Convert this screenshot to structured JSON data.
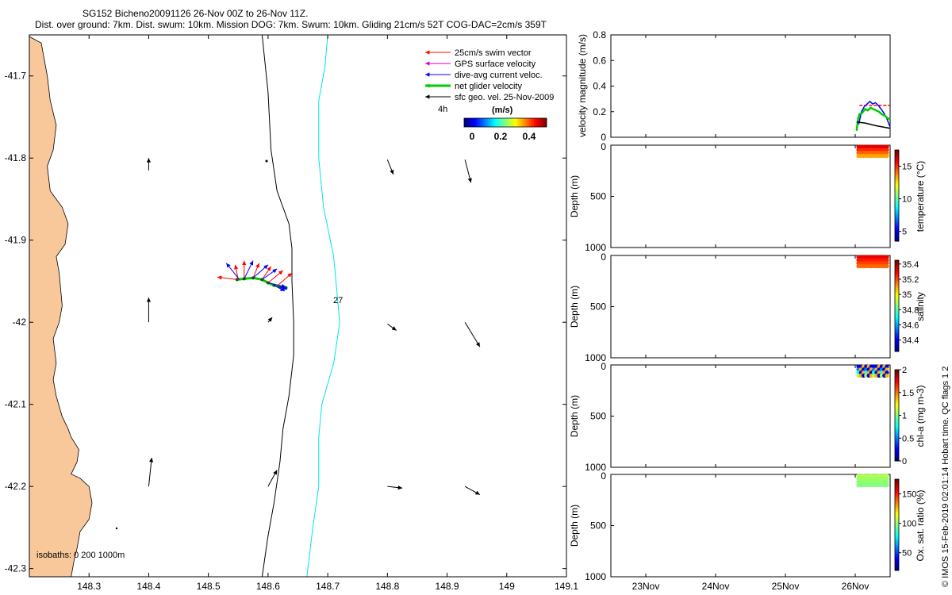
{
  "titles": {
    "line1": "SG152 Bicheno20091126 26-Nov 00Z to 26-Nov 11Z.",
    "line2": "Dist. over ground: 7km. Dist. swum: 10km. Mission DOG: 7km. Swum: 10km. Gliding 21cm/s 52T COG-DAC=2cm/s 359T"
  },
  "credit": "© IMOS 15-Feb-2019 02:01:14 Hobart time. QC flags 1 2",
  "colors": {
    "land": "#F8C89A",
    "shelf_isobath": "#000000",
    "deep_isobath": "#00E5E5",
    "swim": "#FF0000",
    "gps": "#CC00CC",
    "dac": "#0000FF",
    "net": "#00CC00",
    "geo": "#000000"
  },
  "map": {
    "legend": {
      "swim": "25cm/s swim vector",
      "gps": "GPS surface velocity",
      "dac": "dive-avg current veloc.",
      "net": "net glider velocity",
      "geo": "sfc geo. vel. 25-Nov-2009"
    },
    "glider_time_label": "4h",
    "colorbar_label": "(m/s)",
    "colorbar_ticks": [
      "0",
      "0.2",
      "0.4"
    ],
    "isobath_note": "isobaths: 0 200 1000m",
    "contour_label": "27"
  },
  "chart_data": [
    {
      "type": "scatter",
      "title": "SG152 Bicheno20091126 26-Nov 00Z to 26-Nov 11Z.",
      "xlabel": "",
      "ylabel": "",
      "xlim": [
        148.2,
        149.1
      ],
      "ylim": [
        -42.31,
        -41.65
      ],
      "x_ticks": [
        "148.3",
        "148.4",
        "148.5",
        "148.6",
        "148.7",
        "148.8",
        "148.9",
        "149",
        "149.1"
      ],
      "x_tick_values": [
        148.3,
        148.4,
        148.5,
        148.6,
        148.7,
        148.8,
        148.9,
        149.0,
        149.1
      ],
      "y_ticks": [
        "-41.7",
        "-41.8",
        "-41.9",
        "-42",
        "-42.1",
        "-42.2",
        "-42.3"
      ],
      "y_tick_values": [
        -41.7,
        -41.8,
        -41.9,
        -42.0,
        -42.1,
        -42.2,
        -42.3
      ],
      "coastline": [
        [
          148.2,
          -41.652
        ],
        [
          148.22,
          -41.66
        ],
        [
          148.23,
          -41.7
        ],
        [
          148.235,
          -41.73
        ],
        [
          148.245,
          -41.76
        ],
        [
          148.24,
          -41.79
        ],
        [
          148.23,
          -41.81
        ],
        [
          148.235,
          -41.84
        ],
        [
          148.255,
          -41.86
        ],
        [
          148.265,
          -41.88
        ],
        [
          148.26,
          -41.905
        ],
        [
          148.245,
          -41.92
        ],
        [
          148.25,
          -41.94
        ],
        [
          148.255,
          -41.98
        ],
        [
          148.25,
          -42.0
        ],
        [
          148.24,
          -42.02
        ],
        [
          148.245,
          -42.05
        ],
        [
          148.24,
          -42.07
        ],
        [
          148.245,
          -42.09
        ],
        [
          148.255,
          -42.115
        ],
        [
          148.265,
          -42.13
        ],
        [
          148.27,
          -42.14
        ],
        [
          148.283,
          -42.155
        ],
        [
          148.28,
          -42.17
        ],
        [
          148.27,
          -42.185
        ],
        [
          148.285,
          -42.19
        ],
        [
          148.3,
          -42.2
        ],
        [
          148.305,
          -42.22
        ],
        [
          148.3,
          -42.24
        ],
        [
          148.285,
          -42.255
        ],
        [
          148.28,
          -42.275
        ],
        [
          148.275,
          -42.29
        ],
        [
          148.27,
          -42.31
        ],
        [
          148.2,
          -42.31
        ]
      ],
      "shelf_isobath": [
        [
          148.59,
          -41.65
        ],
        [
          148.6,
          -41.72
        ],
        [
          148.605,
          -41.79
        ],
        [
          148.615,
          -41.84
        ],
        [
          148.635,
          -41.88
        ],
        [
          148.64,
          -41.91
        ],
        [
          148.64,
          -41.95
        ],
        [
          148.643,
          -42.0
        ],
        [
          148.643,
          -42.04
        ],
        [
          148.635,
          -42.09
        ],
        [
          148.625,
          -42.13
        ],
        [
          148.62,
          -42.17
        ],
        [
          148.61,
          -42.22
        ],
        [
          148.6,
          -42.26
        ],
        [
          148.59,
          -42.31
        ]
      ],
      "deep_isobath": [
        [
          148.7,
          -41.65
        ],
        [
          148.695,
          -41.69
        ],
        [
          148.685,
          -41.73
        ],
        [
          148.685,
          -41.8
        ],
        [
          148.693,
          -41.86
        ],
        [
          148.71,
          -41.92
        ],
        [
          148.715,
          -41.96
        ],
        [
          148.72,
          -42.0
        ],
        [
          148.71,
          -42.05
        ],
        [
          148.69,
          -42.1
        ],
        [
          148.685,
          -42.14
        ],
        [
          148.685,
          -42.2
        ],
        [
          148.675,
          -42.25
        ],
        [
          148.665,
          -42.31
        ]
      ],
      "track": [
        [
          148.548,
          -41.948
        ],
        [
          148.56,
          -41.947
        ],
        [
          148.575,
          -41.946
        ],
        [
          148.59,
          -41.948
        ],
        [
          148.6,
          -41.952
        ],
        [
          148.61,
          -41.955
        ],
        [
          148.62,
          -41.957
        ],
        [
          148.63,
          -41.958
        ]
      ],
      "swim_vectors": [
        [
          148.548,
          -41.948,
          148.515,
          -41.945
        ],
        [
          148.55,
          -41.948,
          148.545,
          -41.93
        ],
        [
          148.56,
          -41.947,
          148.56,
          -41.925
        ],
        [
          148.575,
          -41.946,
          148.585,
          -41.928
        ],
        [
          148.59,
          -41.948,
          148.605,
          -41.932
        ],
        [
          148.6,
          -41.952,
          148.625,
          -41.937
        ],
        [
          148.615,
          -41.956,
          148.64,
          -41.94
        ]
      ],
      "dac_vectors": [
        [
          148.552,
          -41.948,
          148.53,
          -41.928
        ],
        [
          148.56,
          -41.947,
          148.575,
          -41.925
        ],
        [
          148.575,
          -41.946,
          148.6,
          -41.93
        ],
        [
          148.59,
          -41.948,
          148.615,
          -41.935
        ],
        [
          148.6,
          -41.952,
          148.63,
          -41.957
        ],
        [
          148.61,
          -41.955,
          148.628,
          -41.962
        ],
        [
          148.62,
          -41.957,
          148.632,
          -41.96
        ]
      ],
      "geo_vectors": [
        [
          148.4,
          -41.815,
          148.4,
          -41.8
        ],
        [
          148.4,
          -42.0,
          148.4,
          -41.97
        ],
        [
          148.4,
          -42.2,
          148.405,
          -42.165
        ],
        [
          148.6,
          -42.0,
          148.607,
          -41.994
        ],
        [
          148.6,
          -42.2,
          148.615,
          -42.18
        ],
        [
          148.8,
          -41.802,
          148.81,
          -41.82
        ],
        [
          148.8,
          -42.002,
          148.815,
          -42.01
        ],
        [
          148.8,
          -42.2,
          148.825,
          -42.202
        ],
        [
          148.93,
          -41.802,
          148.94,
          -41.83
        ],
        [
          148.93,
          -42.0,
          148.955,
          -42.03
        ],
        [
          148.93,
          -42.2,
          148.955,
          -42.21
        ]
      ]
    },
    {
      "type": "line",
      "xlabel": "",
      "ylabel": "velocity magnitude (m/s)",
      "xlim": [
        22.5,
        26.5
      ],
      "ylim": [
        0,
        0.8
      ],
      "x_ticks": [
        "23Nov",
        "24Nov",
        "25Nov",
        "26Nov"
      ],
      "x_tick_values": [
        23,
        24,
        25,
        26
      ],
      "y_ticks": [
        "0",
        "0.2",
        "0.4",
        "0.6",
        "0.8"
      ],
      "y_tick_values": [
        0,
        0.2,
        0.4,
        0.6,
        0.8
      ],
      "series": [
        {
          "color": "#FF0000",
          "x": [
            26.06,
            26.5
          ],
          "y": [
            0.25,
            0.25
          ]
        },
        {
          "color": "#0000FF",
          "x": [
            26.05,
            26.09,
            26.13,
            26.17,
            26.21,
            26.25,
            26.29,
            26.33,
            26.37,
            26.41,
            26.45,
            26.5
          ],
          "y": [
            0.1,
            0.2,
            0.24,
            0.26,
            0.28,
            0.26,
            0.27,
            0.25,
            0.22,
            0.19,
            0.15,
            0.08
          ]
        },
        {
          "color": "#00CC00",
          "x": [
            26.02,
            26.04,
            26.06,
            26.1,
            26.14,
            26.18,
            26.22,
            26.26,
            26.3,
            26.34,
            26.38,
            26.42,
            26.46,
            26.5
          ],
          "y": [
            0.05,
            0.14,
            0.18,
            0.19,
            0.22,
            0.21,
            0.23,
            0.22,
            0.21,
            0.2,
            0.18,
            0.17,
            0.15,
            0.14
          ]
        },
        {
          "color": "#000000",
          "x": [
            26.02,
            26.15,
            26.3,
            26.5
          ],
          "y": [
            0.12,
            0.11,
            0.09,
            0.07
          ]
        }
      ]
    },
    {
      "type": "heatmap",
      "xlabel": "",
      "ylabel": "Depth (m)",
      "colorbar_label": "temperature (°C)",
      "xlim": [
        22.5,
        26.5
      ],
      "ylim": [
        0,
        1000
      ],
      "x_ticks": [
        "23Nov",
        "24Nov",
        "25Nov",
        "26Nov"
      ],
      "x_tick_values": [
        23,
        24,
        25,
        26
      ],
      "y_ticks": [
        "0",
        "500",
        "1000"
      ],
      "y_tick_values": [
        0,
        500,
        1000
      ],
      "cbar_range": [
        3.5,
        17.5
      ],
      "cbar_ticks": [
        "5",
        "10",
        "15"
      ],
      "cbar_tick_values": [
        5,
        10,
        15
      ],
      "data_block": {
        "t": [
          26.0,
          26.5
        ],
        "depth": [
          0,
          120
        ],
        "value": [
          13.5,
          16.2
        ]
      }
    },
    {
      "type": "heatmap",
      "xlabel": "",
      "ylabel": "Depth (m)",
      "colorbar_label": "salinity",
      "xlim": [
        22.5,
        26.5
      ],
      "ylim": [
        0,
        1000
      ],
      "x_ticks": [
        "23Nov",
        "24Nov",
        "25Nov",
        "26Nov"
      ],
      "x_tick_values": [
        23,
        24,
        25,
        26
      ],
      "y_ticks": [
        "0",
        "500",
        "1000"
      ],
      "y_tick_values": [
        0,
        500,
        1000
      ],
      "cbar_range": [
        34.25,
        35.45
      ],
      "cbar_ticks": [
        "34.4",
        "34.6",
        "34.8",
        "35",
        "35.2",
        "35.4"
      ],
      "cbar_tick_values": [
        34.4,
        34.6,
        34.8,
        35.0,
        35.2,
        35.4
      ],
      "data_block": {
        "t": [
          26.0,
          26.5
        ],
        "depth": [
          0,
          120
        ],
        "value": [
          35.18,
          35.32
        ]
      }
    },
    {
      "type": "heatmap",
      "xlabel": "",
      "ylabel": "Depth (m)",
      "colorbar_label": "chl-a (mg m-3)",
      "xlim": [
        22.5,
        26.5
      ],
      "ylim": [
        0,
        1000
      ],
      "x_ticks": [
        "23Nov",
        "24Nov",
        "25Nov",
        "26Nov"
      ],
      "x_tick_values": [
        23,
        24,
        25,
        26
      ],
      "y_ticks": [
        "0",
        "500",
        "1000"
      ],
      "y_tick_values": [
        0,
        500,
        1000
      ],
      "cbar_range": [
        0,
        2
      ],
      "cbar_ticks": [
        "0",
        "0.5",
        "1",
        "1.5",
        "2"
      ],
      "cbar_tick_values": [
        0,
        0.5,
        1,
        1.5,
        2
      ],
      "data_block": {
        "t": [
          26.0,
          26.5
        ],
        "depth": [
          0,
          120
        ],
        "value": [
          0.2,
          1.4
        ]
      }
    },
    {
      "type": "heatmap",
      "xlabel": "",
      "ylabel": "Depth (m)",
      "colorbar_label": "Ox. sat. ratio (%)",
      "xlim": [
        22.5,
        26.5
      ],
      "ylim": [
        0,
        1000
      ],
      "x_ticks": [
        "23Nov",
        "24Nov",
        "25Nov",
        "26Nov"
      ],
      "x_tick_values": [
        23,
        24,
        25,
        26
      ],
      "y_ticks": [
        "0",
        "500",
        "1000"
      ],
      "y_tick_values": [
        0,
        500,
        1000
      ],
      "cbar_range": [
        20,
        175
      ],
      "cbar_ticks": [
        "50",
        "100",
        "150"
      ],
      "cbar_tick_values": [
        50,
        100,
        150
      ],
      "data_block": {
        "t": [
          26.0,
          26.5
        ],
        "depth": [
          0,
          120
        ],
        "value": [
          98,
          104
        ]
      }
    }
  ]
}
